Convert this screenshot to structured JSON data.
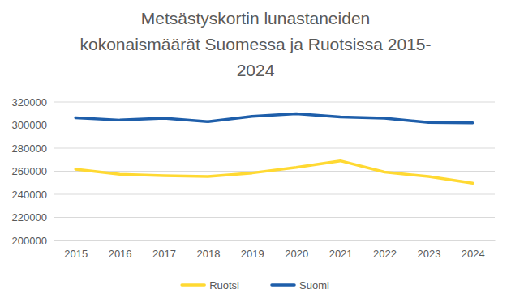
{
  "chart_data": {
    "type": "line",
    "title": "Metsästyskortin lunastaneiden\nkokonaismäärät Suomessa ja Ruotsissa 2015-\n2024",
    "categories": [
      "2015",
      "2016",
      "2017",
      "2018",
      "2019",
      "2020",
      "2021",
      "2022",
      "2023",
      "2024"
    ],
    "series": [
      {
        "name": "Ruotsi",
        "color": "#FFD932",
        "values": [
          261800,
          257300,
          256200,
          255400,
          258500,
          263300,
          269000,
          259300,
          255400,
          249600
        ]
      },
      {
        "name": "Suomi",
        "color": "#1E5EAA",
        "values": [
          306400,
          304300,
          305900,
          303000,
          307500,
          309900,
          307100,
          306000,
          302200,
          301900
        ]
      }
    ],
    "ylim": [
      200000,
      320000
    ],
    "yticks": [
      200000,
      220000,
      240000,
      260000,
      280000,
      300000,
      320000
    ],
    "grid": true,
    "legend": "bottom"
  }
}
